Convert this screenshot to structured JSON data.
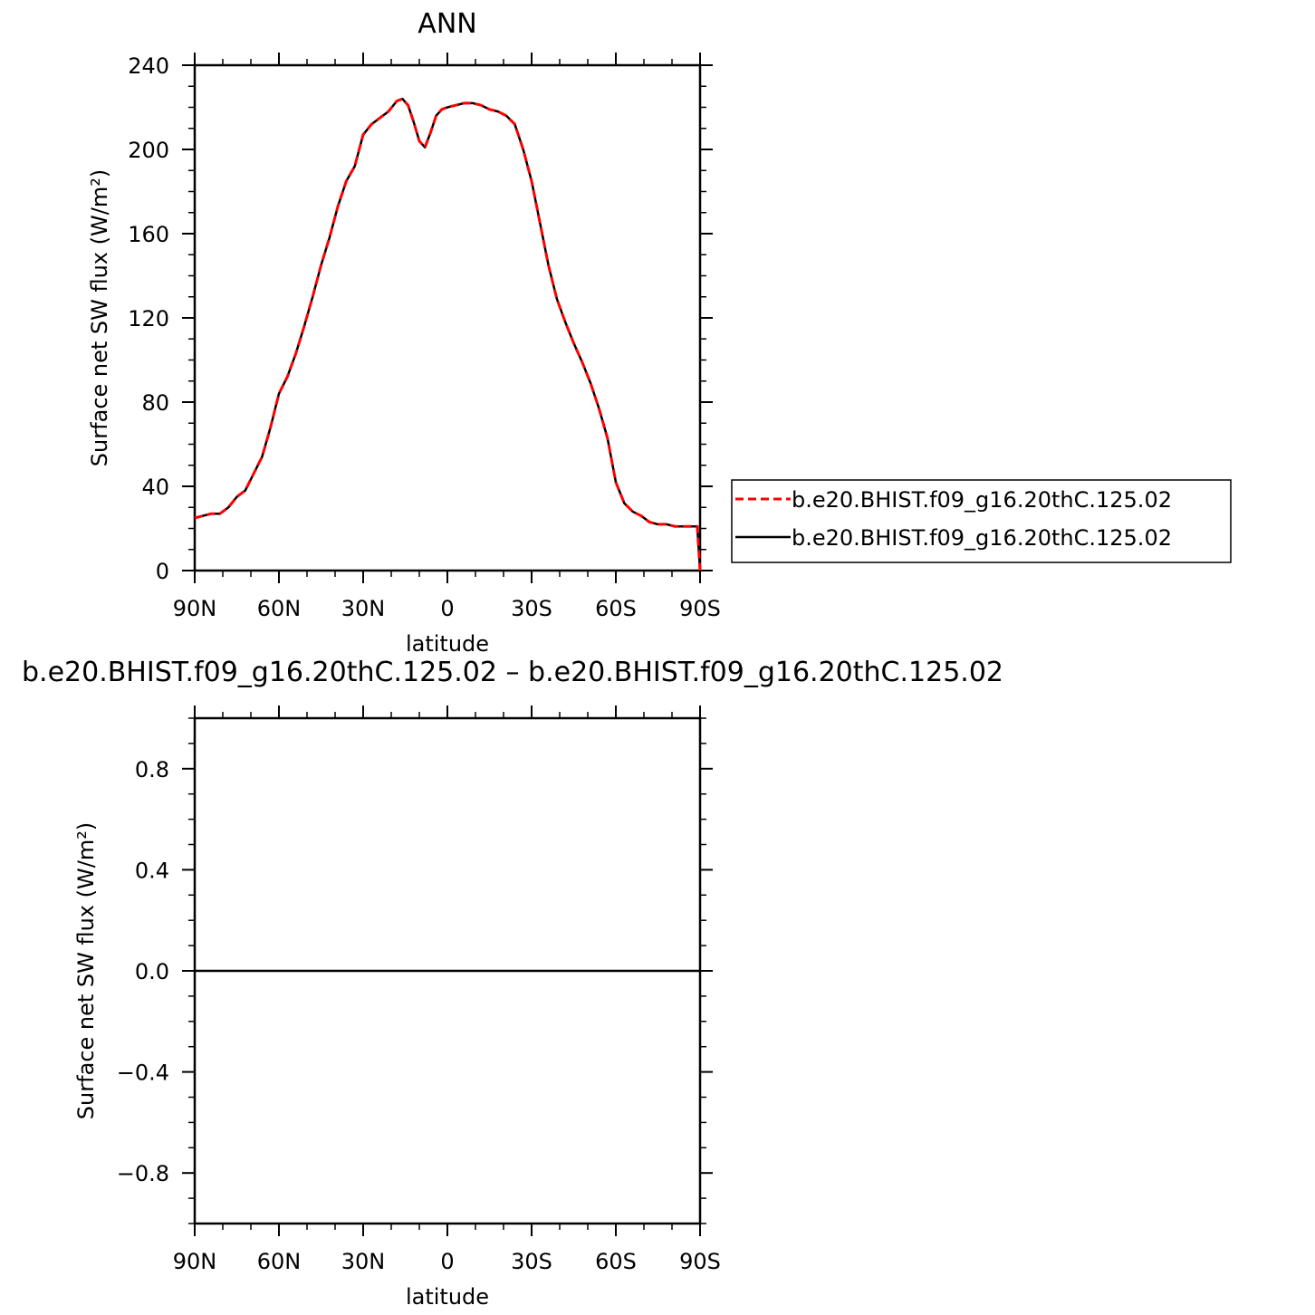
{
  "chart_data": [
    {
      "type": "line",
      "title": "ANN",
      "xlabel": "latitude",
      "ylabel": "Surface net SW flux (W/m²)",
      "xlim": [
        90,
        -90
      ],
      "ylim": [
        0,
        240
      ],
      "x_ticks": [
        {
          "value": 90,
          "label": "90N"
        },
        {
          "value": 60,
          "label": "60N"
        },
        {
          "value": 30,
          "label": "30N"
        },
        {
          "value": 0,
          "label": "0"
        },
        {
          "value": -30,
          "label": "30S"
        },
        {
          "value": -60,
          "label": "60S"
        },
        {
          "value": -90,
          "label": "90S"
        }
      ],
      "y_ticks": [
        {
          "value": 0,
          "label": "0"
        },
        {
          "value": 40,
          "label": "40"
        },
        {
          "value": 80,
          "label": "80"
        },
        {
          "value": 120,
          "label": "120"
        },
        {
          "value": 160,
          "label": "160"
        },
        {
          "value": 200,
          "label": "200"
        },
        {
          "value": 240,
          "label": "240"
        }
      ],
      "grid": false,
      "legend_position": "right",
      "x": [
        90,
        87,
        84,
        81,
        78,
        75,
        72,
        69,
        66,
        63,
        60,
        57,
        54,
        51,
        48,
        45,
        42,
        39,
        36,
        33,
        30,
        27,
        24,
        21,
        18,
        16,
        14,
        12,
        10,
        8,
        6,
        4,
        2,
        0,
        -3,
        -6,
        -9,
        -12,
        -15,
        -18,
        -21,
        -24,
        -27,
        -30,
        -33,
        -36,
        -39,
        -42,
        -45,
        -48,
        -51,
        -54,
        -57,
        -60,
        -63,
        -66,
        -69,
        -72,
        -75,
        -78,
        -81,
        -84,
        -87,
        -89,
        -90
      ],
      "series": [
        {
          "name": "b.e20.BHIST.f09_g16.20thC.125.02",
          "color": "#ff0000",
          "dash": "dashed",
          "values": [
            25,
            26,
            27,
            27,
            30,
            35,
            38,
            46,
            54,
            68,
            84,
            92,
            103,
            116,
            130,
            145,
            158,
            173,
            185,
            192,
            207,
            212,
            215,
            218,
            223,
            224,
            221,
            213,
            204,
            201,
            208,
            216,
            219,
            220,
            221,
            222,
            222,
            221,
            219,
            218,
            216,
            212,
            200,
            185,
            165,
            145,
            129,
            118,
            108,
            99,
            89,
            77,
            63,
            42,
            32,
            28,
            26,
            23,
            22,
            22,
            21,
            21,
            21,
            21,
            0
          ]
        },
        {
          "name": "b.e20.BHIST.f09_g16.20thC.125.02",
          "color": "#000000",
          "dash": "solid",
          "values": [
            25,
            26,
            27,
            27,
            30,
            35,
            38,
            46,
            54,
            68,
            84,
            92,
            103,
            116,
            130,
            145,
            158,
            173,
            185,
            192,
            207,
            212,
            215,
            218,
            223,
            224,
            221,
            213,
            204,
            201,
            208,
            216,
            219,
            220,
            221,
            222,
            222,
            221,
            219,
            218,
            216,
            212,
            200,
            185,
            165,
            145,
            129,
            118,
            108,
            99,
            89,
            77,
            63,
            42,
            32,
            28,
            26,
            23,
            22,
            22,
            21,
            21,
            21,
            21,
            0
          ]
        }
      ]
    },
    {
      "type": "line",
      "title": "b.e20.BHIST.f09_g16.20thC.125.02 – b.e20.BHIST.f09_g16.20thC.125.02",
      "xlabel": "latitude",
      "ylabel": "Surface net SW flux (W/m²)",
      "xlim": [
        90,
        -90
      ],
      "ylim": [
        -1,
        1
      ],
      "x_ticks": [
        {
          "value": 90,
          "label": "90N"
        },
        {
          "value": 60,
          "label": "60N"
        },
        {
          "value": 30,
          "label": "30N"
        },
        {
          "value": 0,
          "label": "0"
        },
        {
          "value": -30,
          "label": "30S"
        },
        {
          "value": -60,
          "label": "60S"
        },
        {
          "value": -90,
          "label": "90S"
        }
      ],
      "y_ticks": [
        {
          "value": -0.8,
          "label": "−0.8"
        },
        {
          "value": -0.4,
          "label": "−0.4"
        },
        {
          "value": 0,
          "label": "0.0"
        },
        {
          "value": 0.4,
          "label": "0.4"
        },
        {
          "value": 0.8,
          "label": "0.8"
        }
      ],
      "grid": false,
      "x": [
        90,
        -90
      ],
      "series": [
        {
          "name": "",
          "color": "#000000",
          "dash": "solid",
          "values": [
            0,
            0
          ]
        }
      ]
    }
  ]
}
